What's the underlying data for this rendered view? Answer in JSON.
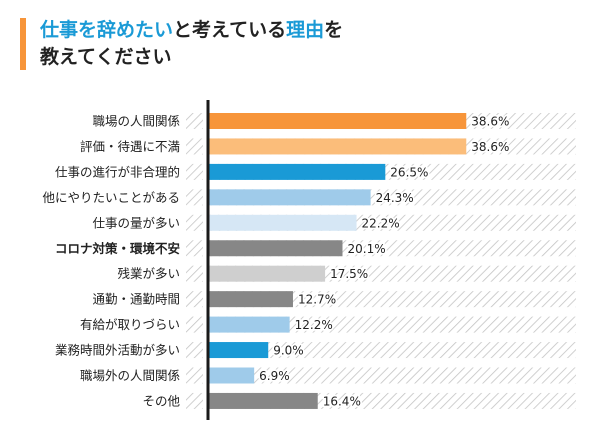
{
  "title": {
    "line1_part1": "仕事を辞めたい",
    "line1_part2": "と考えている",
    "line1_part3": "理由",
    "line1_part4": "を",
    "line2": "教えてください"
  },
  "colors": {
    "accent": "#f7953a",
    "title_highlight": "#1a9ad6",
    "highlight_label": "#f7953a"
  },
  "chart_data": {
    "type": "bar",
    "orientation": "horizontal",
    "categories": [
      "職場の人間関係",
      "評価・待遇に不満",
      "仕事の進行が非合理的",
      "他にやりたいことがある",
      "仕事の量が多い",
      "コロナ対策・環境不安",
      "残業が多い",
      "通勤・通勤時間",
      "有給が取りづらい",
      "業務時間外活動が多い",
      "職場外の人間関係",
      "その他"
    ],
    "values": [
      38.6,
      38.6,
      26.5,
      24.3,
      22.2,
      20.1,
      17.5,
      12.7,
      12.2,
      9.0,
      6.9,
      16.4
    ],
    "value_labels": [
      "38.6%",
      "38.6%",
      "26.5%",
      "24.3%",
      "22.2%",
      "20.1%",
      "17.5%",
      "12.7%",
      "12.2%",
      "9.0%",
      "6.9%",
      "16.4%"
    ],
    "bar_colors": [
      "#f7953a",
      "#fbbd7a",
      "#1a9ad6",
      "#9fcbea",
      "#d6e7f5",
      "#878787",
      "#cfcfcf",
      "#878787",
      "#9fcbea",
      "#1a9ad6",
      "#9fcbea",
      "#878787"
    ],
    "highlighted_category_index": 5,
    "xlim": [
      0,
      55
    ],
    "background_pattern": "diagonal-hatch"
  }
}
